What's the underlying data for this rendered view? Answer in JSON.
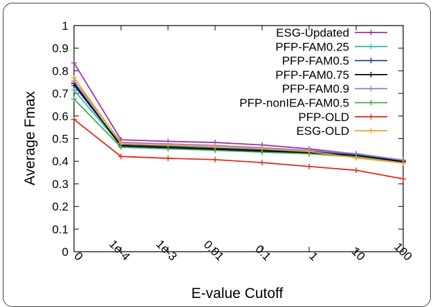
{
  "chart_data": {
    "type": "line",
    "title": "",
    "xlabel": "E-value Cutoff",
    "ylabel": "Average Fmax",
    "categories": [
      "0",
      "1e-4",
      "1e-3",
      "0.01",
      "0.1",
      "1",
      "10",
      "100"
    ],
    "yticks": [
      "0",
      "0.1",
      "0.2",
      "0.3",
      "0.4",
      "0.5",
      "0.6",
      "0.7",
      "0.8",
      "0.9",
      "1"
    ],
    "ylim": [
      0,
      1
    ],
    "grid": false,
    "legend_position": "top-right",
    "series": [
      {
        "name": "ESG-Updated",
        "color": "#9933a8",
        "values": [
          0.835,
          0.495,
          0.488,
          0.483,
          0.472,
          0.455,
          0.432,
          0.405
        ]
      },
      {
        "name": "PFP-FAM0.25",
        "color": "#35b8a8",
        "values": [
          0.715,
          0.468,
          0.462,
          0.455,
          0.447,
          0.44,
          0.428,
          0.4
        ]
      },
      {
        "name": "PFP-FAM0.5",
        "color": "#1d3f8f",
        "values": [
          0.735,
          0.472,
          0.466,
          0.458,
          0.45,
          0.442,
          0.432,
          0.403
        ]
      },
      {
        "name": "PFP-FAM0.75",
        "color": "#000000",
        "values": [
          0.745,
          0.468,
          0.46,
          0.453,
          0.445,
          0.437,
          0.425,
          0.398
        ]
      },
      {
        "name": "PFP-FAM0.9",
        "color": "#9f7fc9",
        "values": [
          0.755,
          0.484,
          0.477,
          0.47,
          0.46,
          0.448,
          0.434,
          0.405
        ]
      },
      {
        "name": "PFP-nonIEA-FAM0.5",
        "color": "#3cae54",
        "values": [
          0.675,
          0.462,
          0.455,
          0.448,
          0.44,
          0.433,
          0.418,
          0.392
        ]
      },
      {
        "name": "PFP-OLD",
        "color": "#e02a1a",
        "values": [
          0.585,
          0.421,
          0.413,
          0.407,
          0.394,
          0.377,
          0.36,
          0.322
        ]
      },
      {
        "name": "ESG-OLD",
        "color": "#f29e28",
        "values": [
          0.77,
          0.478,
          0.472,
          0.465,
          0.455,
          0.443,
          0.415,
          0.392
        ]
      }
    ]
  }
}
